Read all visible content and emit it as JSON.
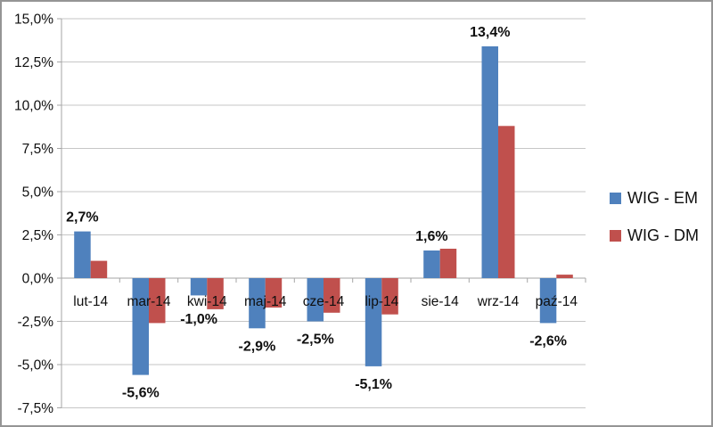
{
  "chart_data": {
    "type": "bar",
    "title": "",
    "xlabel": "",
    "ylabel": "",
    "categories": [
      "lut-14",
      "mar-14",
      "kwi-14",
      "maj-14",
      "cze-14",
      "lip-14",
      "sie-14",
      "wrz-14",
      "paź-14"
    ],
    "series": [
      {
        "name": "WIG - EM",
        "color": "#4F81BD",
        "values": [
          2.7,
          -5.6,
          -1.0,
          -2.9,
          -2.5,
          -5.1,
          1.6,
          13.4,
          -2.6
        ],
        "data_labels": [
          "2,7%",
          "-5,6%",
          "-1,0%",
          "-2,9%",
          "-2,5%",
          "-5,1%",
          "1,6%",
          "13,4%",
          "-2,6%"
        ]
      },
      {
        "name": "WIG - DM",
        "color": "#C0504D",
        "values": [
          1.0,
          -2.6,
          -1.8,
          -1.7,
          -2.0,
          -2.1,
          1.7,
          8.8,
          0.2
        ]
      }
    ],
    "ylim": [
      -7.5,
      15.0
    ],
    "ytick_step": 2.5,
    "ytick_labels": [
      "15,0%",
      "12,5%",
      "10,0%",
      "7,5%",
      "5,0%",
      "2,5%",
      "0,0%",
      "-2,5%",
      "-5,0%",
      "-7,5%"
    ],
    "grid": true,
    "legend_position": "right"
  },
  "colors": {
    "em_blue": "#4F81BD",
    "dm_red": "#C0504D",
    "gridline": "#C6C6C6",
    "axis_line": "#A6A6A6",
    "chart_border": "#959595"
  }
}
